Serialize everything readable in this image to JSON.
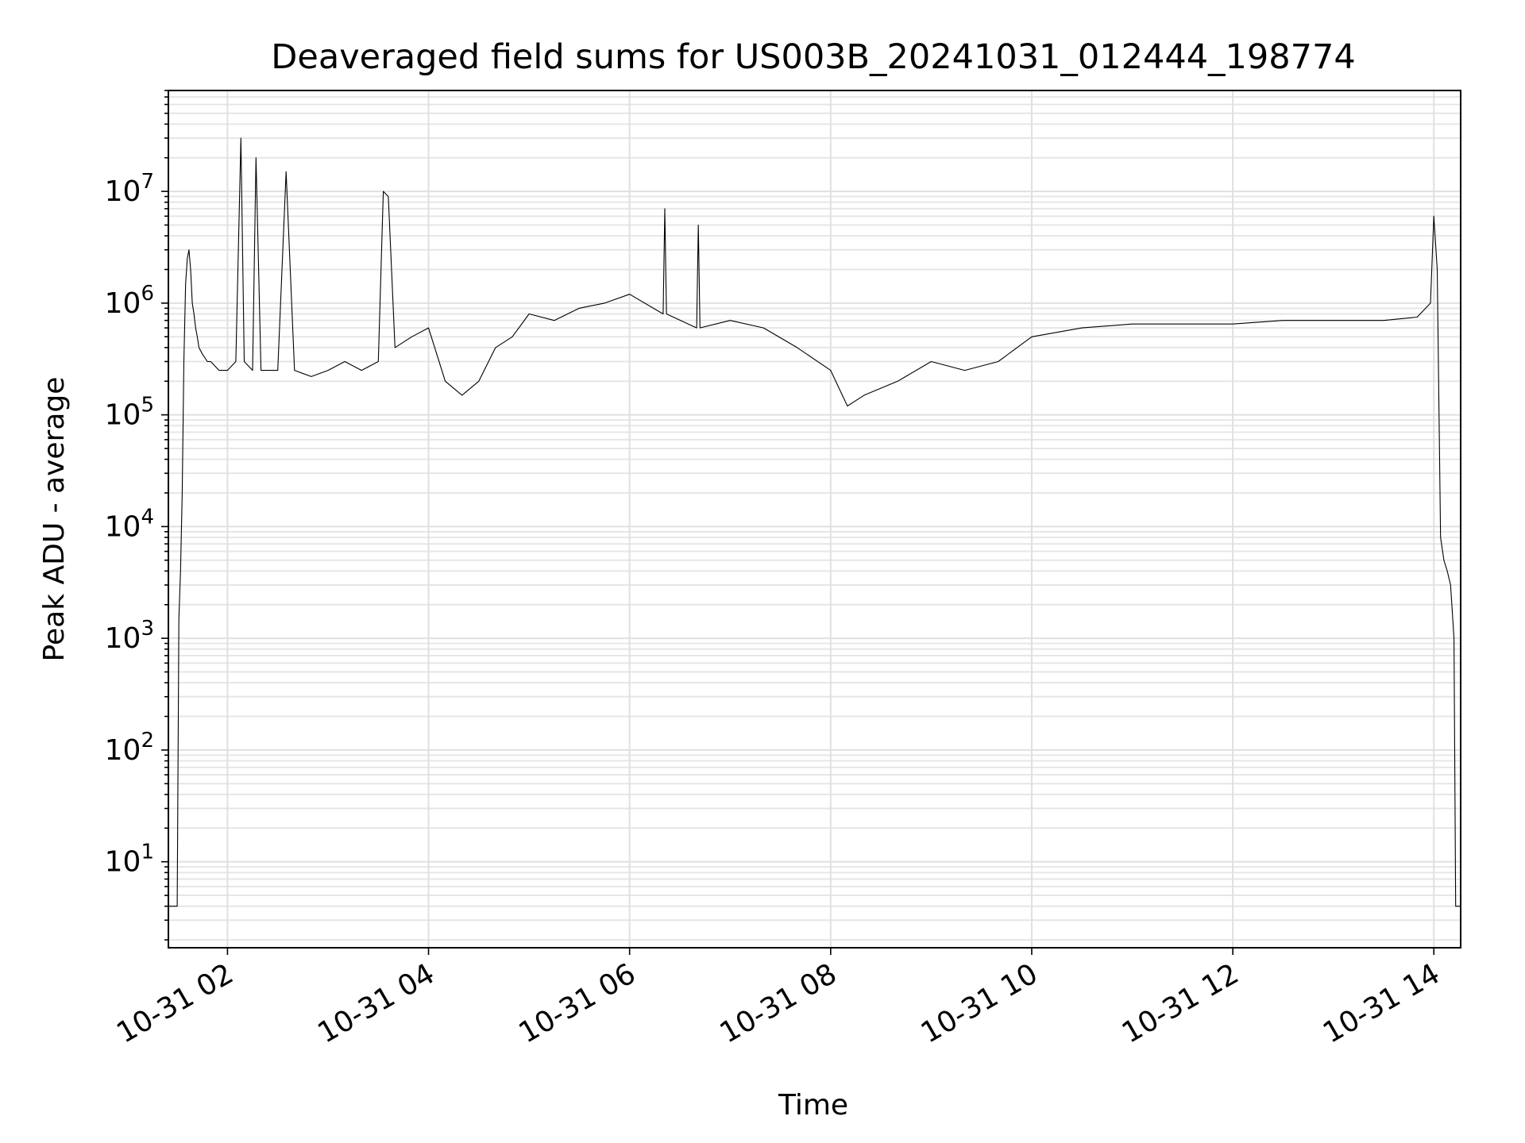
{
  "chart_data": {
    "type": "line",
    "title": "Deaveraged field sums for US003B_20241031_012444_198774",
    "xlabel": "Time",
    "ylabel": "Peak ADU - average",
    "yscale": "log",
    "grid": true,
    "grid_minor": true,
    "xlim": [
      "2024-10-31T01:24:44",
      "2024-10-31T14:16:00"
    ],
    "ylim": [
      1.7,
      80000000
    ],
    "x_ticks": [
      {
        "value": "2024-10-31T02:00",
        "label": "10-31 02"
      },
      {
        "value": "2024-10-31T04:00",
        "label": "10-31 04"
      },
      {
        "value": "2024-10-31T06:00",
        "label": "10-31 06"
      },
      {
        "value": "2024-10-31T08:00",
        "label": "10-31 08"
      },
      {
        "value": "2024-10-31T10:00",
        "label": "10-31 10"
      },
      {
        "value": "2024-10-31T12:00",
        "label": "10-31 12"
      },
      {
        "value": "2024-10-31T14:00",
        "label": "10-31 14"
      }
    ],
    "y_ticks": [
      {
        "value": 10,
        "base": "10",
        "exp": "1"
      },
      {
        "value": 100,
        "base": "10",
        "exp": "2"
      },
      {
        "value": 1000,
        "base": "10",
        "exp": "3"
      },
      {
        "value": 10000,
        "base": "10",
        "exp": "4"
      },
      {
        "value": 100000,
        "base": "10",
        "exp": "5"
      },
      {
        "value": 1000000,
        "base": "10",
        "exp": "6"
      },
      {
        "value": 10000000,
        "base": "10",
        "exp": "7"
      }
    ],
    "series": [
      {
        "color": "#000000",
        "x": [
          "2024-10-31T01:24:44",
          "2024-10-31T01:29:00",
          "2024-10-31T01:30:00",
          "2024-10-31T01:31:00",
          "2024-10-31T01:32:00",
          "2024-10-31T01:33:00",
          "2024-10-31T01:34:00",
          "2024-10-31T01:35:00",
          "2024-10-31T01:36:00",
          "2024-10-31T01:37:00",
          "2024-10-31T01:38:00",
          "2024-10-31T01:39:00",
          "2024-10-31T01:40:00",
          "2024-10-31T01:41:00",
          "2024-10-31T01:42:00",
          "2024-10-31T01:43:00",
          "2024-10-31T01:45:00",
          "2024-10-31T01:48:00",
          "2024-10-31T01:50:00",
          "2024-10-31T01:55:00",
          "2024-10-31T02:00:00",
          "2024-10-31T02:05:00",
          "2024-10-31T02:08:00",
          "2024-10-31T02:10:00",
          "2024-10-31T02:15:00",
          "2024-10-31T02:17:00",
          "2024-10-31T02:20:00",
          "2024-10-31T02:30:00",
          "2024-10-31T02:35:00",
          "2024-10-31T02:40:00",
          "2024-10-31T02:50:00",
          "2024-10-31T03:00:00",
          "2024-10-31T03:10:00",
          "2024-10-31T03:20:00",
          "2024-10-31T03:30:00",
          "2024-10-31T03:33:00",
          "2024-10-31T03:36:00",
          "2024-10-31T03:40:00",
          "2024-10-31T03:50:00",
          "2024-10-31T04:00:00",
          "2024-10-31T04:10:00",
          "2024-10-31T04:20:00",
          "2024-10-31T04:30:00",
          "2024-10-31T04:40:00",
          "2024-10-31T04:50:00",
          "2024-10-31T05:00:00",
          "2024-10-31T05:15:00",
          "2024-10-31T05:30:00",
          "2024-10-31T05:45:00",
          "2024-10-31T06:00:00",
          "2024-10-31T06:20:00",
          "2024-10-31T06:21:00",
          "2024-10-31T06:22:00",
          "2024-10-31T06:40:00",
          "2024-10-31T06:41:00",
          "2024-10-31T06:42:00",
          "2024-10-31T07:00:00",
          "2024-10-31T07:20:00",
          "2024-10-31T07:40:00",
          "2024-10-31T08:00:00",
          "2024-10-31T08:10:00",
          "2024-10-31T08:20:00",
          "2024-10-31T08:40:00",
          "2024-10-31T09:00:00",
          "2024-10-31T09:20:00",
          "2024-10-31T09:40:00",
          "2024-10-31T10:00:00",
          "2024-10-31T10:30:00",
          "2024-10-31T11:00:00",
          "2024-10-31T11:30:00",
          "2024-10-31T12:00:00",
          "2024-10-31T12:30:00",
          "2024-10-31T13:00:00",
          "2024-10-31T13:30:00",
          "2024-10-31T13:50:00",
          "2024-10-31T13:58:00",
          "2024-10-31T14:00:00",
          "2024-10-31T14:02:00",
          "2024-10-31T14:04:00",
          "2024-10-31T14:06:00",
          "2024-10-31T14:08:00",
          "2024-10-31T14:10:00",
          "2024-10-31T14:12:00",
          "2024-10-31T14:13:00",
          "2024-10-31T14:14:00",
          "2024-10-31T14:16:00"
        ],
        "y": [
          4,
          4,
          4,
          1500,
          4000,
          20000,
          300000,
          1500000,
          2500000,
          3000000,
          2000000,
          1000000,
          800000,
          600000,
          500000,
          400000,
          350000,
          300000,
          300000,
          250000,
          250000,
          300000,
          30000000,
          300000,
          250000,
          20000000,
          250000,
          250000,
          15000000,
          250000,
          220000,
          250000,
          300000,
          250000,
          300000,
          10000000,
          9000000,
          400000,
          500000,
          600000,
          200000,
          150000,
          200000,
          400000,
          500000,
          800000,
          700000,
          900000,
          1000000,
          1200000,
          800000,
          7000000,
          800000,
          600000,
          5000000,
          600000,
          700000,
          600000,
          400000,
          250000,
          120000,
          150000,
          200000,
          300000,
          250000,
          300000,
          500000,
          600000,
          650000,
          650000,
          650000,
          700000,
          700000,
          700000,
          750000,
          1000000,
          6000000,
          2000000,
          8000,
          5000,
          4000,
          3000,
          1000,
          4,
          4,
          4
        ]
      }
    ]
  }
}
